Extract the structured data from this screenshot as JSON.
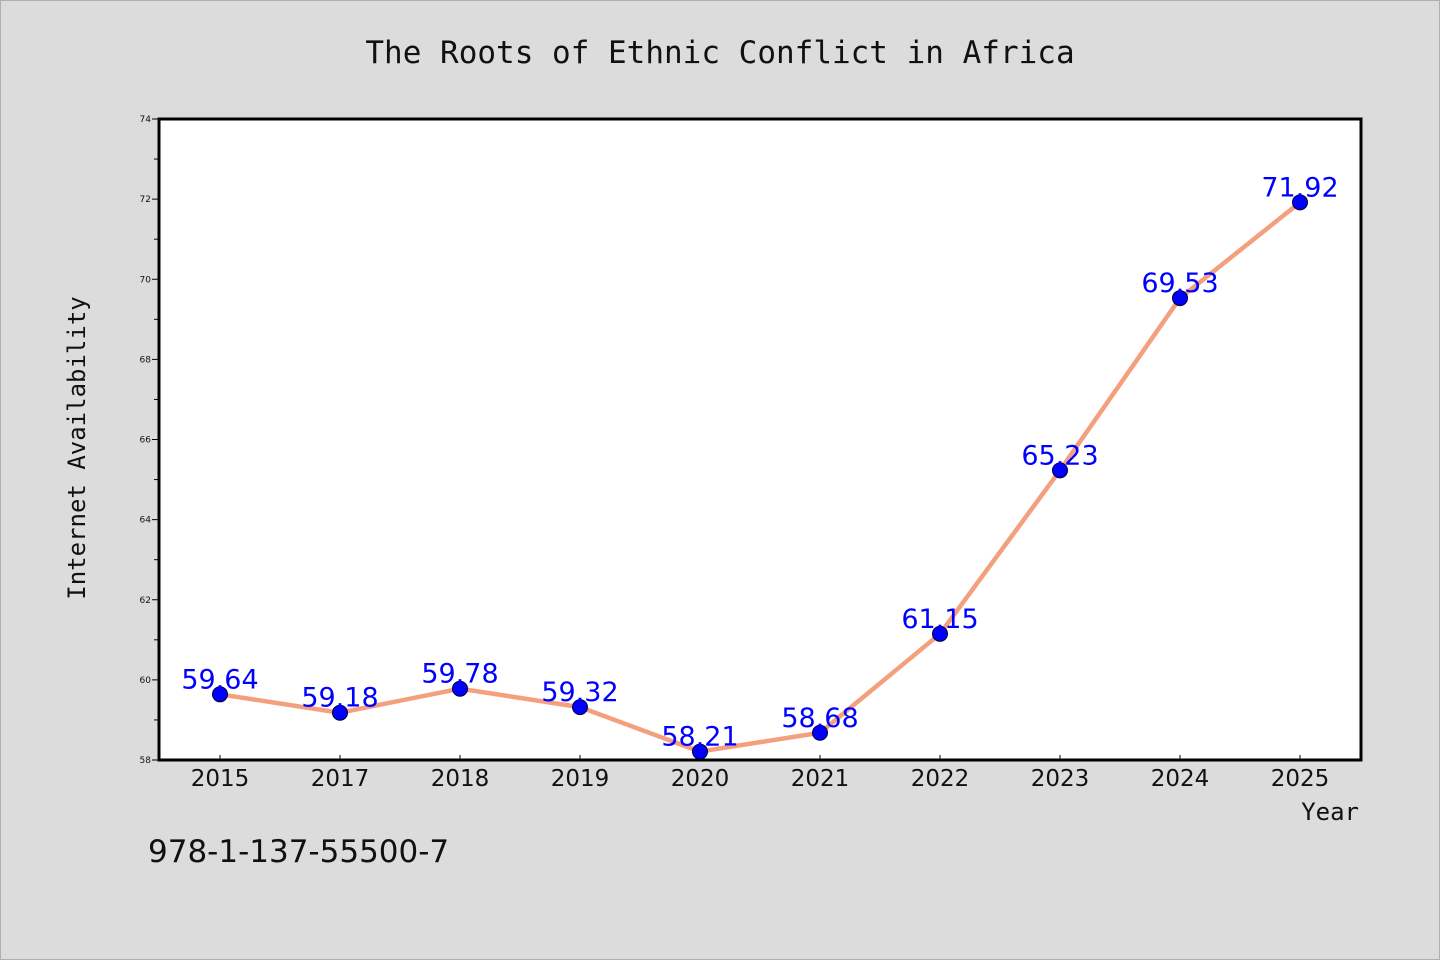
{
  "chart_data": {
    "type": "line",
    "title": "The Roots of Ethnic Conflict in Africa",
    "xlabel": "Year",
    "ylabel": "Internet Availability",
    "categories": [
      "2015",
      "2017",
      "2018",
      "2019",
      "2020",
      "2021",
      "2022",
      "2023",
      "2024",
      "2025"
    ],
    "series": [
      {
        "values": [
          59.64,
          59.18,
          59.78,
          59.32,
          58.21,
          58.68,
          61.15,
          65.23,
          69.53,
          71.92
        ],
        "labels": [
          "59.64",
          "59.18",
          "59.78",
          "59.32",
          "58.21",
          "58.68",
          "61.15",
          "65.23",
          "69.53",
          "71.92"
        ]
      }
    ],
    "ylim": [
      58,
      74
    ],
    "yticks": [
      58,
      60,
      62,
      64,
      66,
      68,
      70,
      72,
      74
    ],
    "grid": false,
    "legend": "none",
    "colors": {
      "line": "#f4a07e",
      "marker": "#0000ff",
      "data_label": "#0000ff",
      "axis": "#000000",
      "plot_bg": "#ffffff",
      "page_bg": "#dcdcdc"
    }
  },
  "footer": {
    "isbn": "978-1-137-55500-7"
  }
}
